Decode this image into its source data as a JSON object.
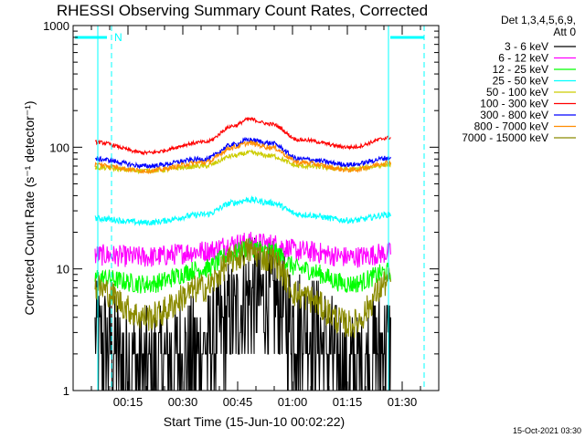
{
  "chart_data": {
    "type": "line",
    "title": "RHESSI Observing Summary Count Rates, Corrected",
    "xlabel": "Start Time (15-Jun-10 00:02:22)",
    "ylabel": "Corrected Count Rate (s⁻¹ detector⁻¹)",
    "yscale": "log",
    "xlim_minutes": [
      0,
      100
    ],
    "ylim": [
      1,
      1000
    ],
    "x_ticks": [
      {
        "label": "00:15",
        "min": 15
      },
      {
        "label": "00:30",
        "min": 30
      },
      {
        "label": "00:45",
        "min": 45
      },
      {
        "label": "01:00",
        "min": 60
      },
      {
        "label": "01:15",
        "min": 75
      },
      {
        "label": "01:30",
        "min": 90
      }
    ],
    "y_ticks": [
      {
        "label": "1",
        "v": 1
      },
      {
        "label": "10",
        "v": 10
      },
      {
        "label": "100",
        "v": 100
      },
      {
        "label": "1000",
        "v": 1000
      }
    ],
    "legend_header": [
      "Det 1,3,4,5,6,9,",
      "Att 0"
    ],
    "legend_position": "right",
    "data_start_min": 6,
    "data_end_min": 87,
    "series": [
      {
        "name": "3 - 6 keV",
        "color": "#000000",
        "x_min": [
          6,
          20,
          36,
          44,
          48,
          54,
          62,
          76,
          87
        ],
        "values": [
          2.5,
          1.5,
          2.2,
          4.0,
          5.8,
          5.5,
          3.5,
          1.5,
          2.5
        ]
      },
      {
        "name": "6 - 12 keV",
        "color": "#ff00ff",
        "x_min": [
          6,
          20,
          36,
          44,
          48,
          54,
          62,
          76,
          87
        ],
        "values": [
          13,
          12.5,
          14,
          16,
          16.5,
          16,
          14,
          12.5,
          13.5
        ]
      },
      {
        "name": "12 - 25 keV",
        "color": "#00ff00",
        "x_min": [
          6,
          20,
          36,
          44,
          48,
          54,
          62,
          76,
          87
        ],
        "values": [
          8.5,
          7.5,
          10,
          13.5,
          15,
          14,
          10,
          7.5,
          9.5
        ]
      },
      {
        "name": "25 - 50 keV",
        "color": "#00ffff",
        "x_min": [
          6,
          20,
          36,
          44,
          48,
          54,
          62,
          76,
          87
        ],
        "values": [
          26,
          24,
          28,
          35,
          37,
          35,
          28,
          25,
          28
        ]
      },
      {
        "name": "50 - 100 keV",
        "color": "#cccc00",
        "x_min": [
          6,
          20,
          36,
          44,
          48,
          54,
          62,
          76,
          87
        ],
        "values": [
          68,
          64,
          70,
          85,
          90,
          85,
          70,
          66,
          72
        ]
      },
      {
        "name": "100 - 300 keV",
        "color": "#ff0000",
        "x_min": [
          6,
          20,
          36,
          44,
          48,
          54,
          62,
          76,
          87
        ],
        "values": [
          110,
          90,
          110,
          150,
          170,
          155,
          115,
          100,
          120
        ]
      },
      {
        "name": "300 - 800 keV",
        "color": "#0000ff",
        "x_min": [
          6,
          20,
          36,
          44,
          48,
          54,
          62,
          76,
          87
        ],
        "values": [
          80,
          70,
          80,
          105,
          115,
          108,
          80,
          72,
          82
        ]
      },
      {
        "name": "800 - 7000 keV",
        "color": "#ff8c00",
        "x_min": [
          6,
          20,
          36,
          44,
          48,
          54,
          62,
          76,
          87
        ],
        "values": [
          72,
          64,
          75,
          100,
          108,
          100,
          75,
          65,
          75
        ]
      },
      {
        "name": "7000 - 15000 keV",
        "color": "#8b8b00",
        "x_min": [
          6,
          20,
          36,
          44,
          48,
          54,
          62,
          76,
          87
        ],
        "values": [
          7,
          4,
          7,
          12,
          14,
          12,
          6,
          3.5,
          8
        ]
      }
    ],
    "flag_label": "N",
    "grid": false
  },
  "footer_timestamp": "15-Oct-2021 03:30"
}
